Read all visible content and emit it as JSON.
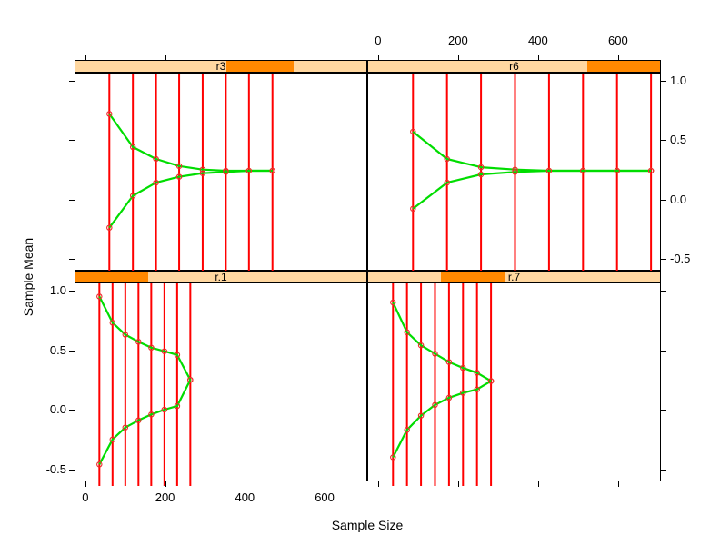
{
  "labels": {
    "x": "Sample Size",
    "y": "Sample Mean"
  },
  "axis": {
    "x_ticks": [
      0,
      200,
      400,
      600
    ],
    "x_tick_labels": [
      "0",
      "200",
      "400",
      "600"
    ],
    "y_ticks": [
      -0.5,
      0.0,
      0.5,
      1.0
    ],
    "y_tick_labels": [
      "-0.5",
      "0.0",
      "0.5",
      "1.0"
    ]
  },
  "colors": {
    "figure_bg": "#ffffff",
    "strip_bg": "#ffd7a0",
    "strip_shade": "#ff8800",
    "line_red": "#ff0000",
    "line_green": "#00dd00",
    "point_outline": "#ee2c2c",
    "border": "#000000",
    "text": "#000000"
  },
  "chart_data": {
    "type": "line",
    "title": "",
    "xlabel": "Sample Size",
    "ylabel": "Sample Mean",
    "xlim": [
      -27,
      707
    ],
    "ylim": [
      -0.6,
      1.07
    ],
    "grid": "off",
    "legend": "none",
    "description_of_marks": "per panel: red vertical reference lines at each sample size spanning full panel height; green upper and lower curves converging to ~0.25 with small red open-circle markers at each point",
    "panels": [
      {
        "strip_label": "r3",
        "grid_position": "top-left",
        "strip_shade_fraction": [
          0.52,
          0.75
        ],
        "sample_sizes": [
          58,
          117,
          175,
          233,
          292,
          350,
          408,
          467
        ],
        "upper": [
          0.73,
          0.45,
          0.35,
          0.29,
          0.26,
          0.25,
          0.25,
          0.25
        ],
        "lower": [
          -0.23,
          0.04,
          0.15,
          0.2,
          0.23,
          0.24,
          0.25,
          0.25
        ]
      },
      {
        "strip_label": "r6",
        "grid_position": "top-right",
        "strip_shade_fraction": [
          0.75,
          1.0
        ],
        "sample_sizes": [
          85,
          170,
          255,
          340,
          425,
          510,
          595,
          680
        ],
        "upper": [
          0.58,
          0.35,
          0.28,
          0.26,
          0.25,
          0.25,
          0.25,
          0.25
        ],
        "lower": [
          -0.07,
          0.15,
          0.22,
          0.24,
          0.25,
          0.25,
          0.25,
          0.25
        ]
      },
      {
        "strip_label": "r.1",
        "grid_position": "bottom-left",
        "strip_shade_fraction": [
          0.0,
          0.25
        ],
        "sample_sizes": [
          33,
          66,
          98,
          131,
          163,
          196,
          228,
          261
        ],
        "upper": [
          0.96,
          0.74,
          0.64,
          0.58,
          0.53,
          0.5,
          0.47,
          0.26
        ],
        "lower": [
          -0.45,
          -0.24,
          -0.14,
          -0.08,
          -0.03,
          0.01,
          0.04,
          0.26
        ]
      },
      {
        "strip_label": "r.7",
        "grid_position": "bottom-right",
        "strip_shade_fraction": [
          0.25,
          0.47
        ],
        "sample_sizes": [
          35,
          70,
          105,
          140,
          175,
          210,
          245,
          280
        ],
        "upper": [
          0.91,
          0.66,
          0.55,
          0.48,
          0.41,
          0.36,
          0.32,
          0.25
        ],
        "lower": [
          -0.39,
          -0.16,
          -0.04,
          0.05,
          0.11,
          0.15,
          0.18,
          0.25
        ]
      }
    ]
  }
}
